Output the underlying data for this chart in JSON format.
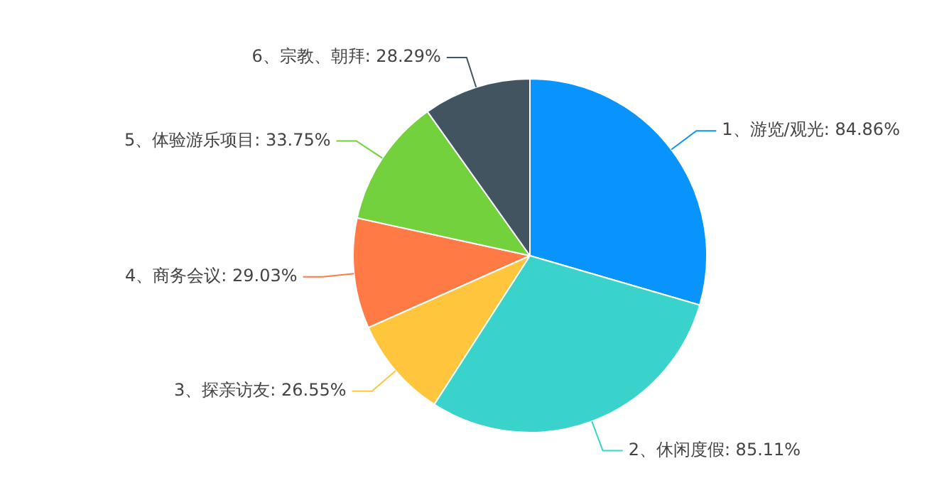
{
  "chart_data": {
    "type": "pie",
    "categories": [
      "1、游览/观光",
      "2、休闲度假",
      "3、探亲访友",
      "4、商务会议",
      "5、体验游乐项目",
      "6、宗教、朝拜"
    ],
    "values": [
      84.86,
      85.11,
      26.55,
      29.03,
      33.75,
      28.29
    ],
    "value_labels": [
      "84.86%",
      "85.11%",
      "26.55%",
      "29.03%",
      "33.75%",
      "28.29%"
    ],
    "colors": [
      "#0894fc",
      "#39d3cb",
      "#ffc53d",
      "#ff7a45",
      "#73d13d",
      "#435461"
    ],
    "legend": false
  }
}
